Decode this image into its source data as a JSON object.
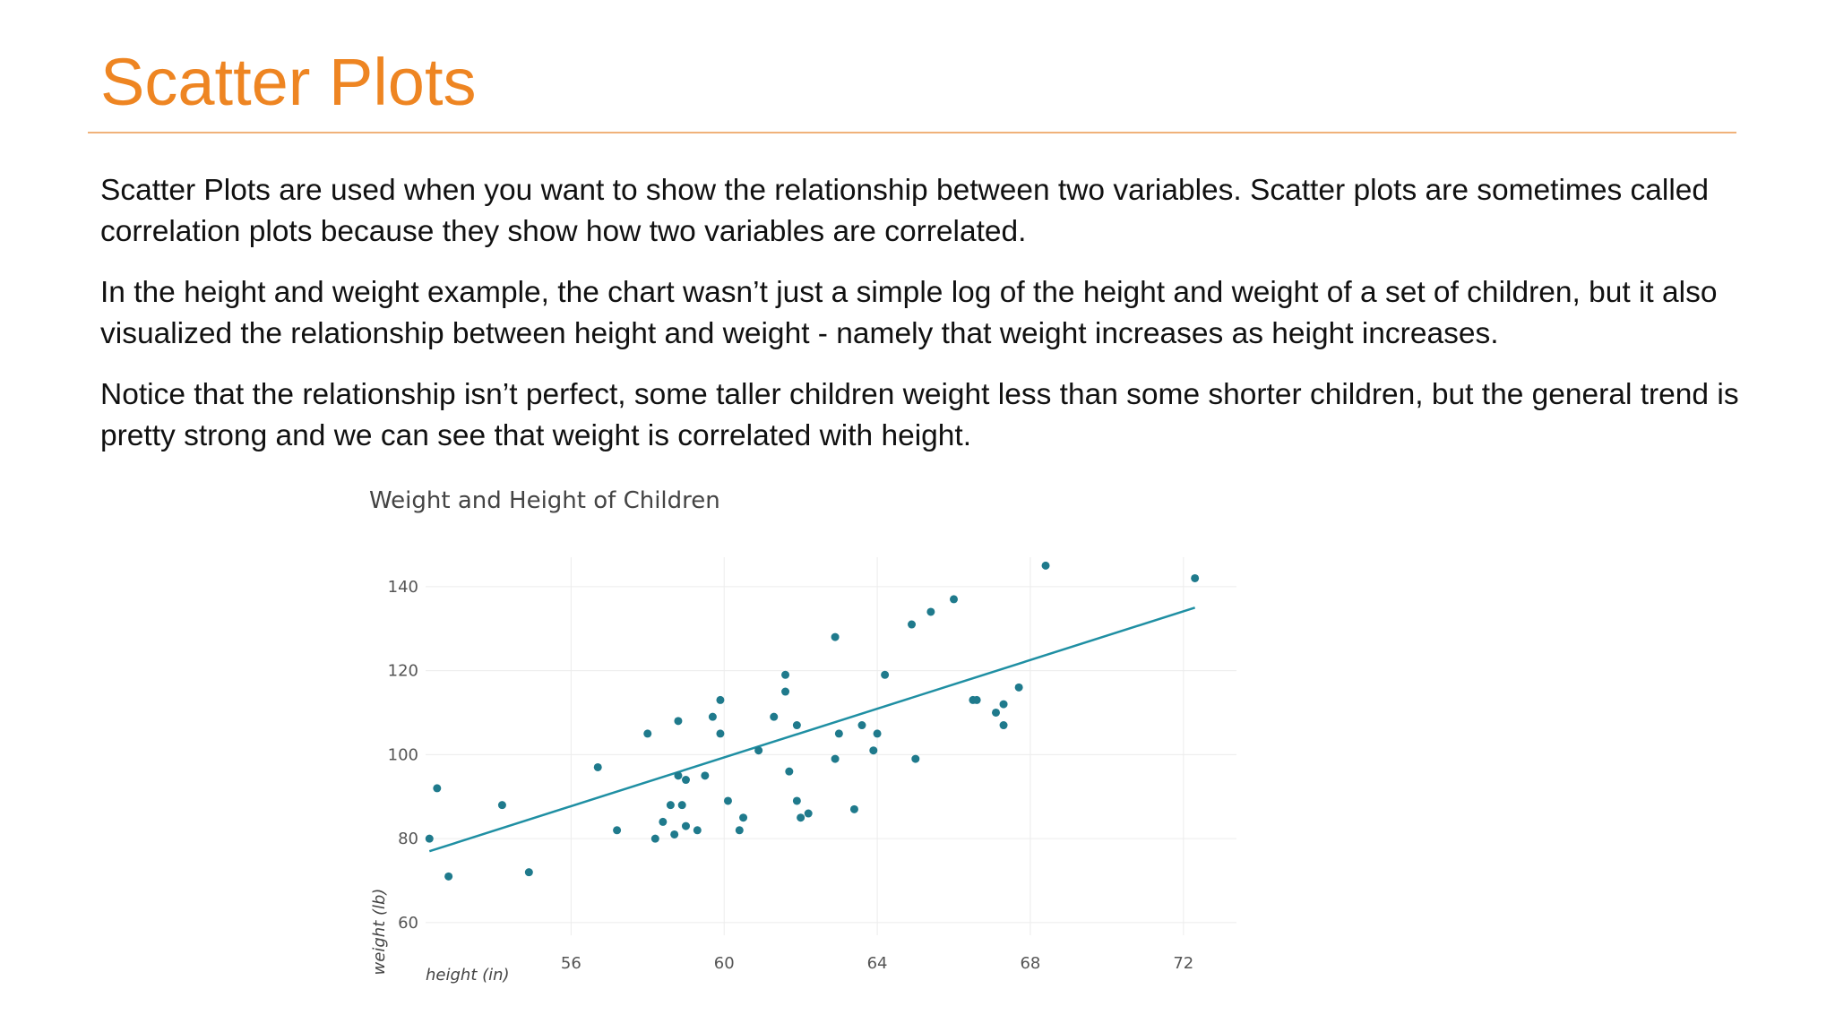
{
  "slide": {
    "title": "Scatter Plots",
    "paragraphs": [
      "Scatter Plots are used when you want to show the relationship between two variables. Scatter plots are sometimes called correlation plots because they show how two variables are correlated.",
      "In the height and weight example, the chart wasn’t just a simple log of the height and weight of a set of children, but it also visualized the relationship between height and weight - namely that weight increases as height increases.",
      "Notice that the relationship isn’t perfect, some taller children weight less than some shorter children, but the general trend is pretty strong and we can see that weight is correlated with height."
    ]
  },
  "colors": {
    "title": "#ee8522",
    "rule": "#f0b27a",
    "point": "#1f7a8c",
    "trendline": "#1f8fa3",
    "grid": "#ececec"
  },
  "chart_data": {
    "type": "scatter",
    "title": "Weight and Height of Children",
    "xlabel": "height (in)",
    "ylabel": "weight (lb)",
    "xlim": [
      52.2,
      72.8
    ],
    "ylim": [
      57,
      147
    ],
    "xticks": [
      56,
      60,
      64,
      68,
      72
    ],
    "yticks": [
      60,
      80,
      100,
      120,
      140
    ],
    "grid": true,
    "points": [
      {
        "x": 52.3,
        "y": 80
      },
      {
        "x": 52.5,
        "y": 92
      },
      {
        "x": 52.8,
        "y": 71
      },
      {
        "x": 54.2,
        "y": 88
      },
      {
        "x": 54.9,
        "y": 72
      },
      {
        "x": 56.7,
        "y": 97
      },
      {
        "x": 57.2,
        "y": 82
      },
      {
        "x": 58.0,
        "y": 105
      },
      {
        "x": 58.2,
        "y": 80
      },
      {
        "x": 58.4,
        "y": 84
      },
      {
        "x": 58.6,
        "y": 88
      },
      {
        "x": 58.7,
        "y": 81
      },
      {
        "x": 58.8,
        "y": 95
      },
      {
        "x": 58.8,
        "y": 108
      },
      {
        "x": 58.9,
        "y": 88
      },
      {
        "x": 59.0,
        "y": 94
      },
      {
        "x": 59.0,
        "y": 83
      },
      {
        "x": 59.3,
        "y": 82
      },
      {
        "x": 59.5,
        "y": 95
      },
      {
        "x": 59.7,
        "y": 109
      },
      {
        "x": 59.9,
        "y": 105
      },
      {
        "x": 59.9,
        "y": 113
      },
      {
        "x": 60.1,
        "y": 89
      },
      {
        "x": 60.4,
        "y": 82
      },
      {
        "x": 60.5,
        "y": 85
      },
      {
        "x": 60.9,
        "y": 101
      },
      {
        "x": 61.3,
        "y": 109
      },
      {
        "x": 61.6,
        "y": 119
      },
      {
        "x": 61.6,
        "y": 115
      },
      {
        "x": 61.7,
        "y": 96
      },
      {
        "x": 61.9,
        "y": 89
      },
      {
        "x": 61.9,
        "y": 107
      },
      {
        "x": 62.0,
        "y": 85
      },
      {
        "x": 62.2,
        "y": 86
      },
      {
        "x": 62.9,
        "y": 128
      },
      {
        "x": 62.9,
        "y": 99
      },
      {
        "x": 63.0,
        "y": 105
      },
      {
        "x": 63.4,
        "y": 87
      },
      {
        "x": 63.6,
        "y": 107
      },
      {
        "x": 63.9,
        "y": 101
      },
      {
        "x": 64.0,
        "y": 105
      },
      {
        "x": 64.2,
        "y": 119
      },
      {
        "x": 64.9,
        "y": 131
      },
      {
        "x": 65.0,
        "y": 99
      },
      {
        "x": 65.4,
        "y": 134
      },
      {
        "x": 66.0,
        "y": 137
      },
      {
        "x": 66.5,
        "y": 113
      },
      {
        "x": 66.6,
        "y": 113
      },
      {
        "x": 67.1,
        "y": 110
      },
      {
        "x": 67.3,
        "y": 112
      },
      {
        "x": 67.3,
        "y": 107
      },
      {
        "x": 67.7,
        "y": 116
      },
      {
        "x": 68.4,
        "y": 145
      },
      {
        "x": 72.3,
        "y": 142
      }
    ],
    "trendline": {
      "x": [
        52.3,
        72.3
      ],
      "y": [
        77,
        135
      ]
    }
  }
}
